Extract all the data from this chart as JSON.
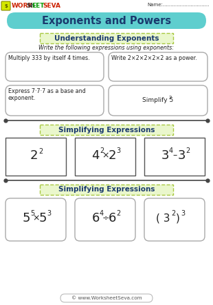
{
  "title": "Exponents and Powers",
  "logo_work": "WORK",
  "logo_sh": "Sh",
  "logo_eet": "EET",
  "logo_seva": "SEVA",
  "name_label": "Name:..............................",
  "section1_title": "Understanding Exponents",
  "section1_subtitle": "Write the following expressions using exponents:",
  "box1a": "Multiply 333 by itself 4 times.",
  "box1b": "Write 2×2×2×2×2 as a power.",
  "box2a": "Express 7·7·7 as a base and\nexponent.",
  "box2b_text": "Simplify 5",
  "box2b_exp": "2",
  "section2_title": "Simplifying Expressions",
  "expr1_base": "2",
  "expr1_exp": "2",
  "expr2_base1": "4",
  "expr2_exp1": "2",
  "expr2_op": "×",
  "expr2_base2": "2",
  "expr2_exp2": "3",
  "expr3_base1": "3",
  "expr3_exp1": "4",
  "expr3_op": "–",
  "expr3_base2": "3",
  "expr3_exp2": "2",
  "section3_title": "Simplifying Expressions",
  "expr4_base1": "5",
  "expr4_exp1": "5",
  "expr4_op": "×",
  "expr4_base2": "5",
  "expr4_exp2": "3",
  "expr5_base1": "6",
  "expr5_exp1": "4",
  "expr5_op": "÷",
  "expr5_base2": "6",
  "expr5_exp2": "2",
  "expr6_open": "( 3",
  "expr6_inner_exp": "2",
  "expr6_close": ")",
  "expr6_outer_exp": "3",
  "footer": "© www.WorksheetSeva.com",
  "bg_color": "#ffffff",
  "header_bg": "#5ecece",
  "section_box_bg": "#eaf7cc",
  "section_box_border": "#a8c840",
  "rounded_box_border": "#aaaaaa",
  "divider_color": "#444444",
  "square_box_border": "#555555",
  "title_color": "#1a3a6e",
  "text_color": "#222222"
}
